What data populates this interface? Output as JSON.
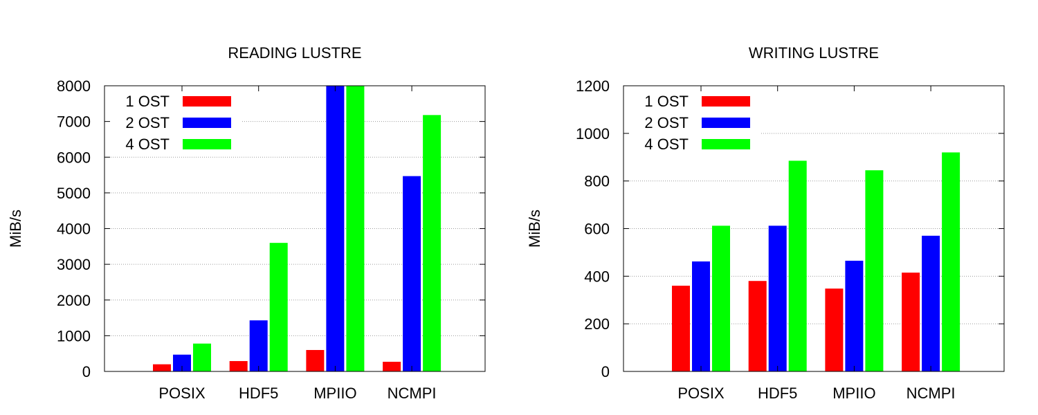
{
  "chart_data": [
    {
      "type": "bar",
      "title": "READING LUSTRE",
      "xlabel": "",
      "ylabel": "MiB/s",
      "ylim": [
        0,
        8000
      ],
      "yticks": [
        0,
        1000,
        2000,
        3000,
        4000,
        5000,
        6000,
        7000,
        8000
      ],
      "grid": true,
      "legend_position": "top-left",
      "categories": [
        "POSIX",
        "HDF5",
        "MPIIO",
        "NCMPI"
      ],
      "series": [
        {
          "name": "1 OST",
          "color": "#ff0000",
          "values": [
            200,
            290,
            600,
            270
          ]
        },
        {
          "name": "2 OST",
          "color": "#0000ff",
          "values": [
            470,
            1430,
            8000,
            5470
          ]
        },
        {
          "name": "4 OST",
          "color": "#00ff00",
          "values": [
            780,
            3600,
            8000,
            7180
          ]
        }
      ]
    },
    {
      "type": "bar",
      "title": "WRITING LUSTRE",
      "xlabel": "",
      "ylabel": "MiB/s",
      "ylim": [
        0,
        1200
      ],
      "yticks": [
        0,
        200,
        400,
        600,
        800,
        1000,
        1200
      ],
      "grid": true,
      "legend_position": "top-left",
      "categories": [
        "POSIX",
        "HDF5",
        "MPIIO",
        "NCMPI"
      ],
      "series": [
        {
          "name": "1 OST",
          "color": "#ff0000",
          "values": [
            360,
            380,
            348,
            415
          ]
        },
        {
          "name": "2 OST",
          "color": "#0000ff",
          "values": [
            462,
            612,
            465,
            570
          ]
        },
        {
          "name": "4 OST",
          "color": "#00ff00",
          "values": [
            612,
            885,
            845,
            920
          ]
        }
      ]
    }
  ]
}
